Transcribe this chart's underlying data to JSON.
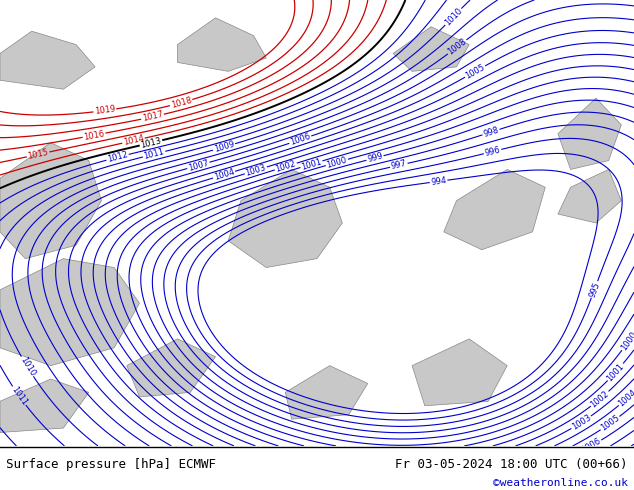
{
  "title_left": "Surface pressure [hPa] ECMWF",
  "title_right": "Fr 03-05-2024 18:00 UTC (00+66)",
  "watermark": "©weatheronline.co.uk",
  "bg_color": "#b2f080",
  "land_color": "#c8c8c8",
  "contour_color_normal": "#0000cc",
  "contour_color_high": "#cc0000",
  "contour_color_1013": "#000000",
  "label_fontsize": 6,
  "footer_fontsize": 9,
  "watermark_color": "#0000cc",
  "figsize": [
    6.34,
    4.9
  ],
  "dpi": 100
}
